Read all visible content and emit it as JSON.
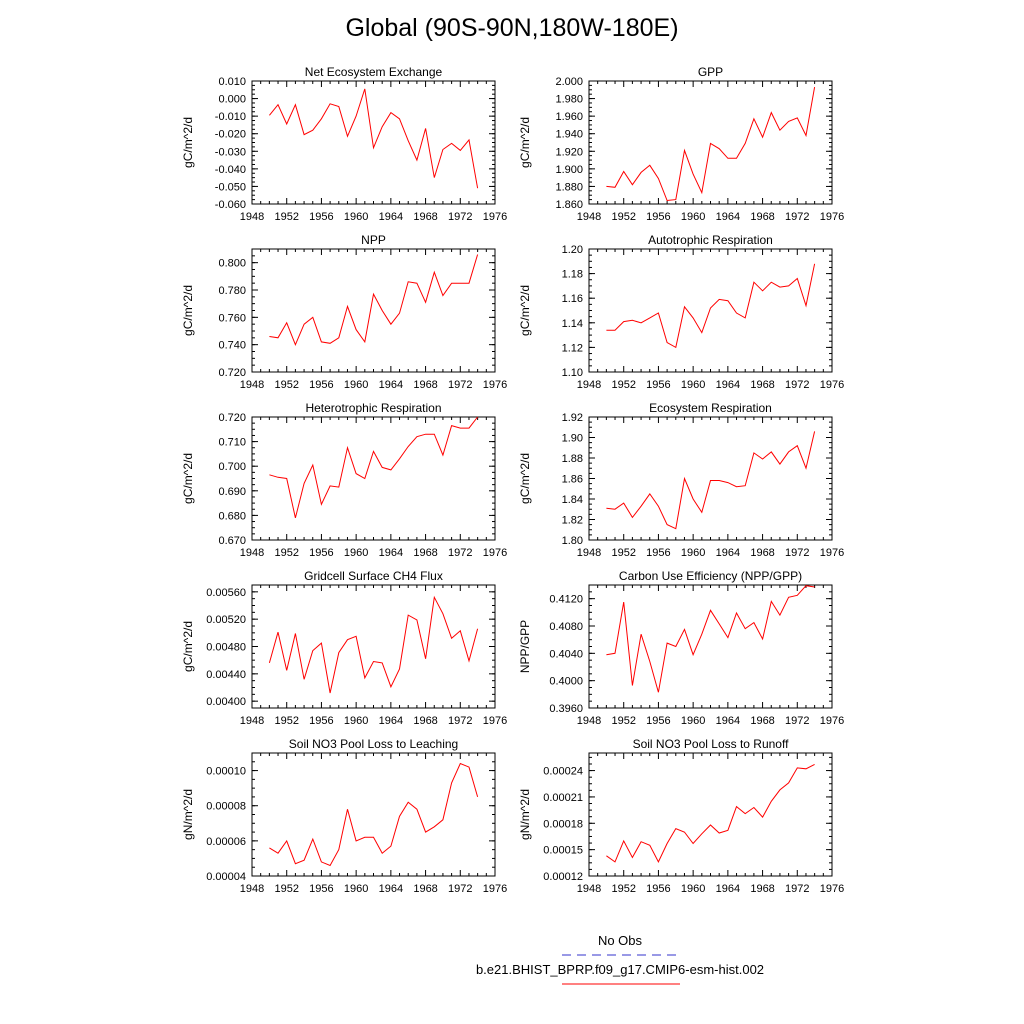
{
  "title": "Global (90S-90N,180W-180E)",
  "legend": {
    "obs_label": "No Obs",
    "obs_color": "#3333cc",
    "case_label": "b.e21.BHIST_BPRP.f09_g17.CMIP6-esm-hist.002",
    "case_color": "#ff0000"
  },
  "chart_data": [
    {
      "type": "line",
      "title": "Net Ecosystem Exchange",
      "xlabel": "",
      "ylabel": "gC/m^2/d",
      "xlim": [
        1948,
        1976
      ],
      "ylim": [
        -0.06,
        0.01
      ],
      "xticks": [
        "1948",
        "1952",
        "1956",
        "1960",
        "1964",
        "1968",
        "1972",
        "1976"
      ],
      "yticks": [
        "-0.060",
        "-0.050",
        "-0.040",
        "-0.030",
        "-0.020",
        "-0.010",
        "0.000",
        "0.010"
      ],
      "series": [
        {
          "name": "b.e21.BHIST_BPRP.f09_g17.CMIP6-esm-hist.002",
          "x": [
            1950,
            1951,
            1952,
            1953,
            1954,
            1955,
            1956,
            1957,
            1958,
            1959,
            1960,
            1961,
            1962,
            1963,
            1964,
            1965,
            1966,
            1967,
            1968,
            1969,
            1970,
            1971,
            1972,
            1973,
            1974
          ],
          "values": [
            -0.0095,
            -0.0035,
            -0.0145,
            -0.0035,
            -0.0205,
            -0.018,
            -0.0115,
            -0.003,
            -0.0045,
            -0.0215,
            -0.01,
            0.0055,
            -0.028,
            -0.016,
            -0.008,
            -0.0115,
            -0.024,
            -0.035,
            -0.017,
            -0.045,
            -0.029,
            -0.0255,
            -0.0295,
            -0.0235,
            -0.051
          ]
        }
      ]
    },
    {
      "type": "line",
      "title": "GPP",
      "xlabel": "",
      "ylabel": "gC/m^2/d",
      "xlim": [
        1948,
        1976
      ],
      "ylim": [
        1.86,
        2.0
      ],
      "xticks": [
        "1948",
        "1952",
        "1956",
        "1960",
        "1964",
        "1968",
        "1972",
        "1976"
      ],
      "yticks": [
        "1.860",
        "1.880",
        "1.900",
        "1.920",
        "1.940",
        "1.960",
        "1.980",
        "2.000"
      ],
      "series": [
        {
          "name": "b.e21.BHIST_BPRP.f09_g17.CMIP6-esm-hist.002",
          "x": [
            1950,
            1951,
            1952,
            1953,
            1954,
            1955,
            1956,
            1957,
            1958,
            1959,
            1960,
            1961,
            1962,
            1963,
            1964,
            1965,
            1966,
            1967,
            1968,
            1969,
            1970,
            1971,
            1972,
            1973,
            1974
          ],
          "values": [
            1.88,
            1.879,
            1.897,
            1.882,
            1.896,
            1.904,
            1.889,
            1.864,
            1.865,
            1.921,
            1.894,
            1.873,
            1.929,
            1.923,
            1.912,
            1.912,
            1.929,
            1.957,
            1.936,
            1.964,
            1.944,
            1.954,
            1.958,
            1.938,
            1.993
          ]
        }
      ]
    },
    {
      "type": "line",
      "title": "NPP",
      "xlabel": "",
      "ylabel": "gC/m^2/d",
      "xlim": [
        1948,
        1976
      ],
      "ylim": [
        0.72,
        0.81
      ],
      "xticks": [
        "1948",
        "1952",
        "1956",
        "1960",
        "1964",
        "1968",
        "1972",
        "1976"
      ],
      "yticks": [
        "0.720",
        "0.740",
        "0.760",
        "0.780",
        "0.800"
      ],
      "series": [
        {
          "name": "b.e21.BHIST_BPRP.f09_g17.CMIP6-esm-hist.002",
          "x": [
            1950,
            1951,
            1952,
            1953,
            1954,
            1955,
            1956,
            1957,
            1958,
            1959,
            1960,
            1961,
            1962,
            1963,
            1964,
            1965,
            1966,
            1967,
            1968,
            1969,
            1970,
            1971,
            1972,
            1973,
            1974
          ],
          "values": [
            0.746,
            0.745,
            0.756,
            0.74,
            0.755,
            0.76,
            0.742,
            0.741,
            0.745,
            0.768,
            0.751,
            0.742,
            0.777,
            0.765,
            0.755,
            0.763,
            0.786,
            0.785,
            0.771,
            0.793,
            0.776,
            0.785,
            0.785,
            0.785,
            0.806
          ]
        }
      ]
    },
    {
      "type": "line",
      "title": "Autotrophic Respiration",
      "xlabel": "",
      "ylabel": "gC/m^2/d",
      "xlim": [
        1948,
        1976
      ],
      "ylim": [
        1.1,
        1.2
      ],
      "xticks": [
        "1948",
        "1952",
        "1956",
        "1960",
        "1964",
        "1968",
        "1972",
        "1976"
      ],
      "yticks": [
        "1.10",
        "1.12",
        "1.14",
        "1.16",
        "1.18",
        "1.20"
      ],
      "series": [
        {
          "name": "b.e21.BHIST_BPRP.f09_g17.CMIP6-esm-hist.002",
          "x": [
            1950,
            1951,
            1952,
            1953,
            1954,
            1955,
            1956,
            1957,
            1958,
            1959,
            1960,
            1961,
            1962,
            1963,
            1964,
            1965,
            1966,
            1967,
            1968,
            1969,
            1970,
            1971,
            1972,
            1973,
            1974
          ],
          "values": [
            1.134,
            1.134,
            1.141,
            1.142,
            1.14,
            1.144,
            1.148,
            1.124,
            1.12,
            1.153,
            1.144,
            1.132,
            1.152,
            1.159,
            1.158,
            1.148,
            1.144,
            1.173,
            1.166,
            1.173,
            1.169,
            1.17,
            1.176,
            1.154,
            1.188
          ]
        }
      ]
    },
    {
      "type": "line",
      "title": "Heterotrophic Respiration",
      "xlabel": "",
      "ylabel": "gC/m^2/d",
      "xlim": [
        1948,
        1976
      ],
      "ylim": [
        0.67,
        0.72
      ],
      "xticks": [
        "1948",
        "1952",
        "1956",
        "1960",
        "1964",
        "1968",
        "1972",
        "1976"
      ],
      "yticks": [
        "0.670",
        "0.680",
        "0.690",
        "0.700",
        "0.710",
        "0.720"
      ],
      "series": [
        {
          "name": "b.e21.BHIST_BPRP.f09_g17.CMIP6-esm-hist.002",
          "x": [
            1950,
            1951,
            1952,
            1953,
            1954,
            1955,
            1956,
            1957,
            1958,
            1959,
            1960,
            1961,
            1962,
            1963,
            1964,
            1965,
            1966,
            1967,
            1968,
            1969,
            1970,
            1971,
            1972,
            1973,
            1974
          ],
          "values": [
            0.6965,
            0.6955,
            0.695,
            0.679,
            0.693,
            0.7005,
            0.6845,
            0.692,
            0.6915,
            0.7075,
            0.697,
            0.695,
            0.706,
            0.6995,
            0.6985,
            0.703,
            0.708,
            0.712,
            0.713,
            0.713,
            0.7045,
            0.7165,
            0.7155,
            0.7155,
            0.72
          ]
        }
      ]
    },
    {
      "type": "line",
      "title": "Ecosystem Respiration",
      "xlabel": "",
      "ylabel": "gC/m^2/d",
      "xlim": [
        1948,
        1976
      ],
      "ylim": [
        1.8,
        1.92
      ],
      "xticks": [
        "1948",
        "1952",
        "1956",
        "1960",
        "1964",
        "1968",
        "1972",
        "1976"
      ],
      "yticks": [
        "1.80",
        "1.82",
        "1.84",
        "1.86",
        "1.88",
        "1.90",
        "1.92"
      ],
      "series": [
        {
          "name": "b.e21.BHIST_BPRP.f09_g17.CMIP6-esm-hist.002",
          "x": [
            1950,
            1951,
            1952,
            1953,
            1954,
            1955,
            1956,
            1957,
            1958,
            1959,
            1960,
            1961,
            1962,
            1963,
            1964,
            1965,
            1966,
            1967,
            1968,
            1969,
            1970,
            1971,
            1972,
            1973,
            1974
          ],
          "values": [
            1.831,
            1.83,
            1.836,
            1.822,
            1.833,
            1.845,
            1.833,
            1.815,
            1.811,
            1.86,
            1.84,
            1.827,
            1.858,
            1.858,
            1.856,
            1.852,
            1.853,
            1.885,
            1.879,
            1.886,
            1.874,
            1.886,
            1.892,
            1.87,
            1.906
          ]
        }
      ]
    },
    {
      "type": "line",
      "title": "Gridcell Surface CH4 Flux",
      "xlabel": "",
      "ylabel": "gC/m^2/d",
      "xlim": [
        1948,
        1976
      ],
      "ylim": [
        0.0039,
        0.0057
      ],
      "xticks": [
        "1948",
        "1952",
        "1956",
        "1960",
        "1964",
        "1968",
        "1972",
        "1976"
      ],
      "yticks": [
        "0.00400",
        "0.00440",
        "0.00480",
        "0.00520",
        "0.00560"
      ],
      "series": [
        {
          "name": "b.e21.BHIST_BPRP.f09_g17.CMIP6-esm-hist.002",
          "x": [
            1950,
            1951,
            1952,
            1953,
            1954,
            1955,
            1956,
            1957,
            1958,
            1959,
            1960,
            1961,
            1962,
            1963,
            1964,
            1965,
            1966,
            1967,
            1968,
            1969,
            1970,
            1971,
            1972,
            1973,
            1974
          ],
          "values": [
            0.00456,
            0.00501,
            0.00445,
            0.00499,
            0.00432,
            0.00474,
            0.00485,
            0.00412,
            0.00471,
            0.0049,
            0.00495,
            0.00434,
            0.00458,
            0.00456,
            0.00421,
            0.00447,
            0.00526,
            0.00519,
            0.00462,
            0.00552,
            0.00528,
            0.00492,
            0.00503,
            0.00459,
            0.00506
          ]
        }
      ]
    },
    {
      "type": "line",
      "title": "Carbon Use Efficiency (NPP/GPP)",
      "xlabel": "",
      "ylabel": "NPP/GPP",
      "xlim": [
        1948,
        1976
      ],
      "ylim": [
        0.396,
        0.414
      ],
      "xticks": [
        "1948",
        "1952",
        "1956",
        "1960",
        "1964",
        "1968",
        "1972",
        "1976"
      ],
      "yticks": [
        "0.3960",
        "0.4000",
        "0.4040",
        "0.4080",
        "0.4120"
      ],
      "series": [
        {
          "name": "b.e21.BHIST_BPRP.f09_g17.CMIP6-esm-hist.002",
          "x": [
            1950,
            1951,
            1952,
            1953,
            1954,
            1955,
            1956,
            1957,
            1958,
            1959,
            1960,
            1961,
            1962,
            1963,
            1964,
            1965,
            1966,
            1967,
            1968,
            1969,
            1970,
            1971,
            1972,
            1973,
            1974
          ],
          "values": [
            0.4038,
            0.404,
            0.4115,
            0.3993,
            0.4068,
            0.4028,
            0.3983,
            0.4055,
            0.405,
            0.4075,
            0.4038,
            0.4068,
            0.4103,
            0.4083,
            0.4063,
            0.4099,
            0.4076,
            0.4085,
            0.4061,
            0.4116,
            0.4096,
            0.4122,
            0.4125,
            0.4139,
            0.4137
          ]
        }
      ]
    },
    {
      "type": "line",
      "title": "Soil NO3 Pool Loss to Leaching",
      "xlabel": "",
      "ylabel": "gN/m^2/d",
      "xlim": [
        1948,
        1976
      ],
      "ylim": [
        4e-05,
        0.00011
      ],
      "xticks": [
        "1948",
        "1952",
        "1956",
        "1960",
        "1964",
        "1968",
        "1972",
        "1976"
      ],
      "yticks": [
        "0.00004",
        "0.00006",
        "0.00008",
        "0.00010"
      ],
      "series": [
        {
          "name": "b.e21.BHIST_BPRP.f09_g17.CMIP6-esm-hist.002",
          "x": [
            1950,
            1951,
            1952,
            1953,
            1954,
            1955,
            1956,
            1957,
            1958,
            1959,
            1960,
            1961,
            1962,
            1963,
            1964,
            1965,
            1966,
            1967,
            1968,
            1969,
            1970,
            1971,
            1972,
            1973,
            1974
          ],
          "values": [
            5.6e-05,
            5.3e-05,
            6e-05,
            4.7e-05,
            4.9e-05,
            6.1e-05,
            4.8e-05,
            4.6e-05,
            5.5e-05,
            7.8e-05,
            6e-05,
            6.2e-05,
            6.2e-05,
            5.3e-05,
            5.7e-05,
            7.4e-05,
            8.2e-05,
            7.8e-05,
            6.5e-05,
            6.8e-05,
            7.2e-05,
            9.3e-05,
            0.000104,
            0.000102,
            8.5e-05
          ]
        }
      ]
    },
    {
      "type": "line",
      "title": "Soil NO3 Pool Loss to Runoff",
      "xlabel": "",
      "ylabel": "gN/m^2/d",
      "xlim": [
        1948,
        1976
      ],
      "ylim": [
        0.00012,
        0.00026
      ],
      "xticks": [
        "1948",
        "1952",
        "1956",
        "1960",
        "1964",
        "1968",
        "1972",
        "1976"
      ],
      "yticks": [
        "0.00012",
        "0.00015",
        "0.00018",
        "0.00021",
        "0.00024"
      ],
      "series": [
        {
          "name": "b.e21.BHIST_BPRP.f09_g17.CMIP6-esm-hist.002",
          "x": [
            1950,
            1951,
            1952,
            1953,
            1954,
            1955,
            1956,
            1957,
            1958,
            1959,
            1960,
            1961,
            1962,
            1963,
            1964,
            1965,
            1966,
            1967,
            1968,
            1969,
            1970,
            1971,
            1972,
            1973,
            1974
          ],
          "values": [
            0.000143,
            0.000136,
            0.00016,
            0.000141,
            0.000159,
            0.000155,
            0.000136,
            0.000157,
            0.000174,
            0.00017,
            0.000157,
            0.000168,
            0.000178,
            0.000169,
            0.000172,
            0.000199,
            0.000191,
            0.000198,
            0.000187,
            0.000205,
            0.000218,
            0.000226,
            0.000243,
            0.000242,
            0.000247
          ]
        }
      ]
    }
  ]
}
